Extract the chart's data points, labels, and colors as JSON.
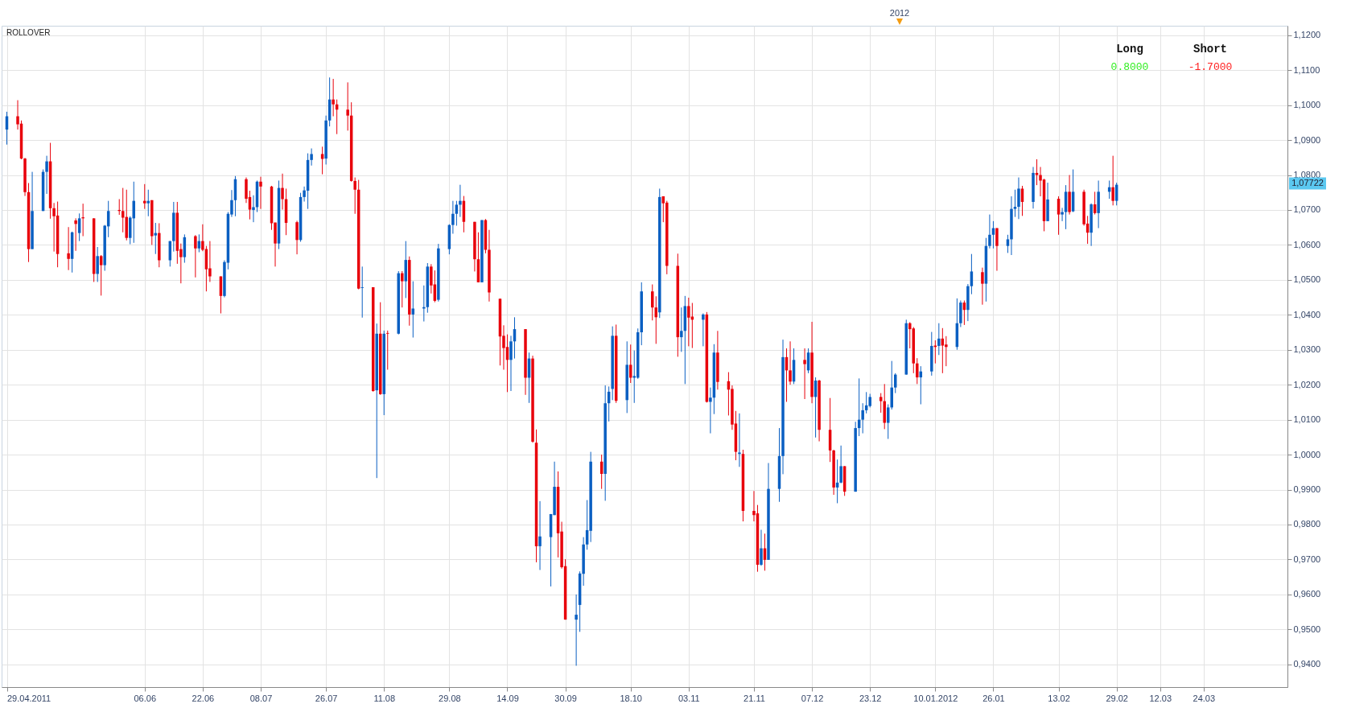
{
  "chart_data": {
    "type": "candlestick",
    "annotations": [
      "ROLLOVER",
      "Long",
      "Short",
      "0.8000",
      "-1.7000",
      "2012",
      "1,07722"
    ],
    "x": [
      "2011-04-29",
      "2011-05-02",
      "2011-05-03",
      "2011-05-04",
      "2011-05-05",
      "2011-05-06",
      "2011-05-09",
      "2011-05-10",
      "2011-05-11",
      "2011-05-12",
      "2011-05-13",
      "2011-05-16",
      "2011-05-17",
      "2011-05-18",
      "2011-05-19",
      "2011-05-20",
      "2011-05-23",
      "2011-05-24",
      "2011-05-25",
      "2011-05-26",
      "2011-05-27",
      "2011-05-30",
      "2011-05-31",
      "2011-06-01",
      "2011-06-02",
      "2011-06-03",
      "2011-06-06",
      "2011-06-07",
      "2011-06-08",
      "2011-06-09",
      "2011-06-10",
      "2011-06-13",
      "2011-06-14",
      "2011-06-15",
      "2011-06-16",
      "2011-06-17",
      "2011-06-20",
      "2011-06-21",
      "2011-06-22",
      "2011-06-23",
      "2011-06-24",
      "2011-06-27",
      "2011-06-28",
      "2011-06-29",
      "2011-06-30",
      "2011-07-01",
      "2011-07-04",
      "2011-07-05",
      "2011-07-06",
      "2011-07-07",
      "2011-07-08",
      "2011-07-11",
      "2011-07-12",
      "2011-07-13",
      "2011-07-14",
      "2011-07-15",
      "2011-07-18",
      "2011-07-19",
      "2011-07-20",
      "2011-07-21",
      "2011-07-22",
      "2011-07-25",
      "2011-07-26",
      "2011-07-27",
      "2011-07-28",
      "2011-07-29",
      "2011-08-01",
      "2011-08-02",
      "2011-08-03",
      "2011-08-04",
      "2011-08-05",
      "2011-08-08",
      "2011-08-09",
      "2011-08-10",
      "2011-08-11",
      "2011-08-12",
      "2011-08-15",
      "2011-08-16",
      "2011-08-17",
      "2011-08-18",
      "2011-08-19",
      "2011-08-22",
      "2011-08-23",
      "2011-08-24",
      "2011-08-25",
      "2011-08-26",
      "2011-08-29",
      "2011-08-30",
      "2011-08-31",
      "2011-09-01",
      "2011-09-02",
      "2011-09-05",
      "2011-09-06",
      "2011-09-07",
      "2011-09-08",
      "2011-09-09",
      "2011-09-12",
      "2011-09-13",
      "2011-09-14",
      "2011-09-15",
      "2011-09-16",
      "2011-09-19",
      "2011-09-20",
      "2011-09-21",
      "2011-09-22",
      "2011-09-23",
      "2011-09-26",
      "2011-09-27",
      "2011-09-28",
      "2011-09-29",
      "2011-09-30",
      "2011-10-03",
      "2011-10-04",
      "2011-10-05",
      "2011-10-06",
      "2011-10-07",
      "2011-10-10",
      "2011-10-11",
      "2011-10-12",
      "2011-10-13",
      "2011-10-14",
      "2011-10-17",
      "2011-10-18",
      "2011-10-19",
      "2011-10-20",
      "2011-10-21",
      "2011-10-24",
      "2011-10-25",
      "2011-10-26",
      "2011-10-27",
      "2011-10-28",
      "2011-10-31",
      "2011-11-01",
      "2011-11-02",
      "2011-11-03",
      "2011-11-04",
      "2011-11-07",
      "2011-11-08",
      "2011-11-09",
      "2011-11-10",
      "2011-11-11",
      "2011-11-14",
      "2011-11-15",
      "2011-11-16",
      "2011-11-17",
      "2011-11-18",
      "2011-11-21",
      "2011-11-22",
      "2011-11-23",
      "2011-11-24",
      "2011-11-25",
      "2011-11-28",
      "2011-11-29",
      "2011-11-30",
      "2011-12-01",
      "2011-12-02",
      "2011-12-05",
      "2011-12-06",
      "2011-12-07",
      "2011-12-08",
      "2011-12-09",
      "2011-12-12",
      "2011-12-13",
      "2011-12-14",
      "2011-12-15",
      "2011-12-16",
      "2011-12-19",
      "2011-12-20",
      "2011-12-21",
      "2011-12-22",
      "2011-12-23",
      "2011-12-26",
      "2011-12-27",
      "2011-12-28",
      "2011-12-29",
      "2011-12-30",
      "2012-01-02",
      "2012-01-03",
      "2012-01-04",
      "2012-01-05",
      "2012-01-06",
      "2012-01-09",
      "2012-01-10",
      "2012-01-11",
      "2012-01-12",
      "2012-01-13",
      "2012-01-16",
      "2012-01-17",
      "2012-01-18",
      "2012-01-19",
      "2012-01-20",
      "2012-01-23",
      "2012-01-24",
      "2012-01-25",
      "2012-01-26",
      "2012-01-27",
      "2012-01-30",
      "2012-01-31",
      "2012-02-01",
      "2012-02-02",
      "2012-02-03",
      "2012-02-06",
      "2012-02-07",
      "2012-02-08",
      "2012-02-09",
      "2012-02-10",
      "2012-02-13",
      "2012-02-14",
      "2012-02-15",
      "2012-02-16",
      "2012-02-17",
      "2012-02-20",
      "2012-02-21",
      "2012-02-22",
      "2012-02-23",
      "2012-02-24",
      "2012-02-27",
      "2012-02-28",
      "2012-02-29"
    ],
    "ohlc": [
      [
        1.093,
        1.0981,
        1.0887,
        1.0968
      ],
      [
        1.0968,
        1.1014,
        1.093,
        1.0945
      ],
      [
        1.0947,
        1.0956,
        1.0845,
        1.0847
      ],
      [
        1.0847,
        1.0849,
        1.074,
        1.0751
      ],
      [
        1.0751,
        1.0777,
        1.0551,
        1.0588
      ],
      [
        1.0588,
        1.0809,
        1.0588,
        1.0697
      ],
      [
        1.0697,
        1.0816,
        1.0697,
        1.0809
      ],
      [
        1.0809,
        1.0855,
        1.0746,
        1.0839
      ],
      [
        1.0839,
        1.0892,
        1.0675,
        1.0705
      ],
      [
        1.0705,
        1.072,
        1.0581,
        1.0682
      ],
      [
        1.0684,
        1.0724,
        1.0536,
        1.0574
      ],
      [
        1.0576,
        1.0651,
        1.0528,
        1.056
      ],
      [
        1.056,
        1.0638,
        1.0521,
        1.0636
      ],
      [
        1.067,
        1.0676,
        1.0583,
        1.066
      ],
      [
        1.0634,
        1.069,
        1.0611,
        1.0676
      ],
      [
        1.0679,
        1.0718,
        1.0625,
        1.0676
      ],
      [
        1.0676,
        1.0676,
        1.0494,
        1.0517
      ],
      [
        1.0517,
        1.0594,
        1.0494,
        1.0568
      ],
      [
        1.0568,
        1.0571,
        1.0455,
        1.0542
      ],
      [
        1.0542,
        1.0657,
        1.0526,
        1.0655
      ],
      [
        1.0653,
        1.0726,
        1.0622,
        1.0697
      ],
      [
        1.07,
        1.0731,
        1.0686,
        1.0697
      ],
      [
        1.0697,
        1.0763,
        1.0636,
        1.0678
      ],
      [
        1.068,
        1.0758,
        1.0613,
        1.062
      ],
      [
        1.062,
        1.0682,
        1.0602,
        1.0678
      ],
      [
        1.0676,
        1.0781,
        1.0606,
        1.0726
      ],
      [
        1.0726,
        1.0774,
        1.0703,
        1.0719
      ],
      [
        1.0719,
        1.0758,
        1.0682,
        1.0726
      ],
      [
        1.0728,
        1.0728,
        1.06,
        1.0625
      ],
      [
        1.0627,
        1.0663,
        1.0574,
        1.0634
      ],
      [
        1.0634,
        1.0662,
        1.0536,
        1.0556
      ],
      [
        1.0556,
        1.0611,
        1.0538,
        1.0611
      ],
      [
        1.0611,
        1.0723,
        1.0581,
        1.0692
      ],
      [
        1.0692,
        1.0723,
        1.0546,
        1.0583
      ],
      [
        1.0588,
        1.0604,
        1.049,
        1.0565
      ],
      [
        1.0565,
        1.063,
        1.0549,
        1.0622
      ],
      [
        1.0625,
        1.0628,
        1.0507,
        1.059
      ],
      [
        1.059,
        1.063,
        1.0579,
        1.0611
      ],
      [
        1.0611,
        1.0659,
        1.0582,
        1.0586
      ],
      [
        1.0588,
        1.0597,
        1.0467,
        1.053
      ],
      [
        1.0533,
        1.0611,
        1.0494,
        1.051
      ],
      [
        1.051,
        1.051,
        1.0404,
        1.0454
      ],
      [
        1.0454,
        1.0556,
        1.045,
        1.0551
      ],
      [
        1.0549,
        1.0694,
        1.053,
        1.0689
      ],
      [
        1.0687,
        1.0757,
        1.068,
        1.0728
      ],
      [
        1.0728,
        1.0797,
        1.0682,
        1.0788
      ],
      [
        1.0788,
        1.0793,
        1.072,
        1.0732
      ],
      [
        1.0737,
        1.0755,
        1.0673,
        1.0701
      ],
      [
        1.07,
        1.0742,
        1.0665,
        1.0708
      ],
      [
        1.0708,
        1.0784,
        1.0694,
        1.0781
      ],
      [
        1.0781,
        1.0795,
        1.0703,
        1.0767
      ],
      [
        1.0767,
        1.0769,
        1.0643,
        1.0662
      ],
      [
        1.0664,
        1.0664,
        1.0538,
        1.0604
      ],
      [
        1.0604,
        1.0784,
        1.0588,
        1.0763
      ],
      [
        1.0763,
        1.0804,
        1.0701,
        1.0731
      ],
      [
        1.0731,
        1.0761,
        1.0628,
        1.0663
      ],
      [
        1.0665,
        1.0669,
        1.0573,
        1.0614
      ],
      [
        1.0614,
        1.0749,
        1.0609,
        1.0737
      ],
      [
        1.0737,
        1.0767,
        1.0724,
        1.0756
      ],
      [
        1.0755,
        1.0862,
        1.0703,
        1.0843
      ],
      [
        1.0843,
        1.0876,
        1.0827,
        1.086
      ],
      [
        1.086,
        1.0881,
        1.0802,
        1.0846
      ],
      [
        1.0847,
        1.097,
        1.083,
        1.0956
      ],
      [
        1.0956,
        1.1079,
        1.0939,
        1.1016
      ],
      [
        1.1016,
        1.1075,
        1.0968,
        1.1002
      ],
      [
        1.1002,
        1.1016,
        1.0917,
        1.0987
      ],
      [
        1.0987,
        1.1065,
        1.0927,
        1.097
      ],
      [
        1.097,
        1.1008,
        1.0781,
        1.0783
      ],
      [
        1.0783,
        1.0793,
        1.0689,
        1.0758
      ],
      [
        1.0758,
        1.0786,
        1.0473,
        1.0475
      ],
      [
        1.0477,
        1.0538,
        1.0392,
        1.0479
      ],
      [
        1.0479,
        1.0479,
        1.018,
        1.0182
      ],
      [
        1.0184,
        1.0375,
        0.9933,
        1.0346
      ],
      [
        1.0346,
        1.0436,
        1.0171,
        1.0173
      ],
      [
        1.0173,
        1.0355,
        1.0113,
        1.0346
      ],
      [
        1.0348,
        1.0355,
        1.0243,
        1.0346
      ],
      [
        1.0346,
        1.0525,
        1.0344,
        1.0519
      ],
      [
        1.0519,
        1.0525,
        1.0421,
        1.0496
      ],
      [
        1.0496,
        1.0611,
        1.0448,
        1.0557
      ],
      [
        1.0557,
        1.0567,
        1.0369,
        1.0401
      ],
      [
        1.0401,
        1.0496,
        1.0335,
        1.0418
      ],
      [
        1.0418,
        1.0484,
        1.0381,
        1.0422
      ],
      [
        1.0422,
        1.0548,
        1.0406,
        1.0538
      ],
      [
        1.0538,
        1.0545,
        1.0461,
        1.0484
      ],
      [
        1.0487,
        1.0527,
        1.0436,
        1.044
      ],
      [
        1.0443,
        1.0603,
        1.0438,
        1.059
      ],
      [
        1.0588,
        1.0659,
        1.0573,
        1.0657
      ],
      [
        1.0657,
        1.0726,
        1.0632,
        1.0689
      ],
      [
        1.0689,
        1.0726,
        1.0655,
        1.0715
      ],
      [
        1.0715,
        1.0772,
        1.068,
        1.0726
      ],
      [
        1.0726,
        1.074,
        1.0636,
        1.0666
      ],
      [
        1.0666,
        1.0666,
        1.0524,
        1.0559
      ],
      [
        1.0559,
        1.0636,
        1.0493,
        1.0493
      ],
      [
        1.0493,
        1.0671,
        1.0493,
        1.0671
      ],
      [
        1.0671,
        1.0674,
        1.0576,
        1.0586
      ],
      [
        1.0586,
        1.0643,
        1.0438,
        1.0464
      ],
      [
        1.0446,
        1.0446,
        1.0255,
        1.0338
      ],
      [
        1.034,
        1.037,
        1.0243,
        1.0305
      ],
      [
        1.0308,
        1.0344,
        1.0179,
        1.0271
      ],
      [
        1.0271,
        1.034,
        1.0182,
        1.0324
      ],
      [
        1.0324,
        1.0393,
        1.0275,
        1.0359
      ],
      [
        1.0359,
        1.0359,
        1.0171,
        1.022
      ],
      [
        1.022,
        1.0292,
        1.0148,
        1.0275
      ],
      [
        1.0275,
        1.0283,
        1.0034,
        1.0037
      ],
      [
        1.0034,
        1.0072,
        0.9692,
        0.9738
      ],
      [
        0.9738,
        0.9867,
        0.967,
        0.9766
      ],
      [
        0.9764,
        0.983,
        0.9623,
        0.983
      ],
      [
        0.9827,
        0.998,
        0.9827,
        0.9908
      ],
      [
        0.9908,
        0.9952,
        0.9706,
        0.9775
      ],
      [
        0.978,
        0.9808,
        0.9674,
        0.9678
      ],
      [
        0.9681,
        0.9701,
        0.9528,
        0.9528
      ],
      [
        0.9528,
        0.96,
        0.9396,
        0.9542
      ],
      [
        0.957,
        0.9666,
        0.9493,
        0.966
      ],
      [
        0.9659,
        0.9764,
        0.9625,
        0.9743
      ],
      [
        0.9743,
        0.987,
        0.9728,
        0.9784
      ],
      [
        0.9782,
        1.0008,
        0.975,
        0.998
      ],
      [
        0.998,
        1.0,
        0.9902,
        0.9945
      ],
      [
        0.9945,
        1.0198,
        0.9868,
        1.0147
      ],
      [
        1.0147,
        1.0195,
        1.0095,
        1.018
      ],
      [
        1.0188,
        1.0367,
        1.0156,
        1.034
      ],
      [
        1.034,
        1.0372,
        1.0148,
        1.0154
      ],
      [
        1.0156,
        1.0324,
        1.0119,
        1.0257
      ],
      [
        1.0257,
        1.0315,
        1.0205,
        1.022
      ],
      [
        1.022,
        1.0298,
        1.0148,
        1.0225
      ],
      [
        1.022,
        1.0361,
        1.0217,
        1.035
      ],
      [
        1.035,
        1.0493,
        1.0313,
        1.0467
      ],
      [
        1.0467,
        1.0487,
        1.0384,
        1.0421
      ],
      [
        1.0421,
        1.0453,
        1.0317,
        1.0393
      ],
      [
        1.0407,
        1.0761,
        1.0391,
        1.0737
      ],
      [
        1.0739,
        1.0739,
        1.0665,
        1.0719
      ],
      [
        1.0721,
        1.0726,
        1.0516,
        1.054
      ],
      [
        1.054,
        1.0575,
        1.028,
        1.0336
      ],
      [
        1.0336,
        1.0421,
        1.0294,
        1.0354
      ],
      [
        1.0354,
        1.0454,
        1.0202,
        1.0425
      ],
      [
        1.0425,
        1.0449,
        1.031,
        1.0392
      ],
      [
        1.0395,
        1.0434,
        1.0305,
        1.0386
      ],
      [
        1.0386,
        1.0404,
        1.031,
        1.0401
      ],
      [
        1.0401,
        1.0408,
        1.0149,
        1.0151
      ],
      [
        1.0151,
        1.0192,
        1.0061,
        1.0163
      ],
      [
        1.0163,
        1.0316,
        1.0116,
        1.0292
      ],
      [
        1.0292,
        1.0354,
        1.0186,
        1.0208
      ],
      [
        1.021,
        1.0236,
        1.0112,
        1.0186
      ],
      [
        1.0188,
        1.0198,
        1.0071,
        1.0086
      ],
      [
        1.0089,
        1.0125,
        0.9984,
        1.0008
      ],
      [
        1.0002,
        1.0118,
        0.9965,
        1.0006
      ],
      [
        1.0002,
        1.0014,
        0.9809,
        0.9839
      ],
      [
        0.9839,
        0.9896,
        0.9809,
        0.9827
      ],
      [
        0.9832,
        0.9856,
        0.9665,
        0.9685
      ],
      [
        0.9685,
        0.9785,
        0.9682,
        0.9732
      ],
      [
        0.9732,
        0.9774,
        0.9668,
        0.9699
      ],
      [
        0.9699,
        0.9976,
        0.9699,
        0.9902
      ],
      [
        0.9902,
        1.0076,
        0.9865,
        0.9996
      ],
      [
        0.9996,
        1.0329,
        0.9944,
        1.0279
      ],
      [
        1.0279,
        1.0304,
        1.0151,
        1.0241
      ],
      [
        1.0241,
        1.0324,
        1.02,
        1.0209
      ],
      [
        1.0209,
        1.0304,
        1.0202,
        1.0271
      ],
      [
        1.0271,
        1.0304,
        1.0159,
        1.0259
      ],
      [
        1.0241,
        1.0304,
        1.0233,
        1.0292
      ],
      [
        1.0292,
        1.038,
        1.0147,
        1.0165
      ],
      [
        1.0165,
        1.0221,
        1.0049,
        1.0212
      ],
      [
        1.0212,
        1.0214,
        1.0038,
        1.0071
      ],
      [
        1.0071,
        1.0162,
        0.9979,
        1.0012
      ],
      [
        1.0012,
        1.0014,
        0.9885,
        0.9906
      ],
      [
        0.9906,
        0.9986,
        0.9861,
        0.992
      ],
      [
        0.992,
        1.0026,
        0.9918,
        0.9967
      ],
      [
        0.9967,
        0.9967,
        0.9882,
        0.9894
      ],
      [
        0.9894,
        1.0094,
        0.9894,
        1.0076
      ],
      [
        1.0076,
        1.0218,
        1.0053,
        1.01
      ],
      [
        1.01,
        1.0147,
        1.0061,
        1.0127
      ],
      [
        1.0127,
        1.0179,
        1.0118,
        1.0141
      ],
      [
        1.0139,
        1.0174,
        1.0135,
        1.0165
      ],
      [
        1.0165,
        1.0176,
        1.012,
        1.0153
      ],
      [
        1.0153,
        1.0202,
        1.0073,
        1.0091
      ],
      [
        1.0091,
        1.0144,
        1.0045,
        1.0135
      ],
      [
        1.0135,
        1.0268,
        1.0129,
        1.0192
      ],
      [
        1.0192,
        1.0233,
        1.0176,
        1.0229
      ],
      [
        1.0229,
        1.0386,
        1.0229,
        1.0376
      ],
      [
        1.0376,
        1.0379,
        1.0304,
        1.0359
      ],
      [
        1.0361,
        1.0365,
        1.0233,
        1.0261
      ],
      [
        1.0261,
        1.0276,
        1.0202,
        1.0221
      ],
      [
        1.0221,
        1.0253,
        1.0144,
        1.0238
      ],
      [
        1.0238,
        1.0351,
        1.0226,
        1.0311
      ],
      [
        1.0312,
        1.0327,
        1.0261,
        1.0308
      ],
      [
        1.0311,
        1.0376,
        1.0285,
        1.0332
      ],
      [
        1.0332,
        1.0362,
        1.0233,
        1.0312
      ],
      [
        1.0315,
        1.0339,
        1.0253,
        1.0308
      ],
      [
        1.0308,
        1.0447,
        1.03,
        1.0376
      ],
      [
        1.0376,
        1.0441,
        1.0365,
        1.0435
      ],
      [
        1.0435,
        1.0441,
        1.0371,
        1.0414
      ],
      [
        1.0414,
        1.0488,
        1.0382,
        1.0482
      ],
      [
        1.0482,
        1.0574,
        1.0459,
        1.0524
      ],
      [
        1.0522,
        1.0535,
        1.0429,
        1.0489
      ],
      [
        1.0489,
        1.062,
        1.0438,
        1.0597
      ],
      [
        1.0597,
        1.0687,
        1.059,
        1.0629
      ],
      [
        1.0629,
        1.0668,
        1.059,
        1.0648
      ],
      [
        1.0648,
        1.0648,
        1.0526,
        1.0597
      ],
      [
        1.0597,
        1.0629,
        1.0577,
        1.0616
      ],
      [
        1.0616,
        1.0739,
        1.0571,
        1.0703
      ],
      [
        1.0703,
        1.0758,
        1.068,
        1.0709
      ],
      [
        1.0709,
        1.0793,
        1.0674,
        1.0761
      ],
      [
        1.0761,
        1.0769,
        1.0683,
        1.0723
      ],
      [
        1.0723,
        1.0823,
        1.0704,
        1.0806
      ],
      [
        1.0806,
        1.0845,
        1.0771,
        1.08
      ],
      [
        1.08,
        1.0823,
        1.0739,
        1.0784
      ],
      [
        1.0787,
        1.0789,
        1.0639,
        1.0668
      ],
      [
        1.0668,
        1.0778,
        1.0668,
        1.073
      ],
      [
        1.0732,
        1.0739,
        1.0629,
        1.0687
      ],
      [
        1.0687,
        1.0706,
        1.0668,
        1.0694
      ],
      [
        1.0694,
        1.0771,
        1.0645,
        1.0752
      ],
      [
        1.0752,
        1.08,
        1.0687,
        1.0694
      ],
      [
        1.0696,
        1.0816,
        1.0694,
        1.0752
      ],
      [
        1.0752,
        1.0758,
        1.0655,
        1.0659
      ],
      [
        1.0661,
        1.0683,
        1.0603,
        1.0635
      ],
      [
        1.0635,
        1.0719,
        1.0597,
        1.0716
      ],
      [
        1.0716,
        1.0752,
        1.0687,
        1.0691
      ],
      [
        1.0691,
        1.0784,
        1.0648,
        1.0752
      ],
      [
        1.0752,
        1.0784,
        1.0732,
        1.0765
      ],
      [
        1.0765,
        1.0855,
        1.0713,
        1.0726
      ],
      [
        1.0726,
        1.0778,
        1.0713,
        1.07722
      ]
    ],
    "colors": [
      "#0a5fc2",
      "#e8000b",
      "#e8000b",
      "#e8000b",
      "#e8000b",
      "#0a5fc2",
      "#0a5fc2",
      "#0a5fc2",
      "#e8000b",
      "#e8000b",
      "#e8000b",
      "#e8000b",
      "#0a5fc2",
      "#e8000b",
      "#0a5fc2",
      "#e8000b",
      "#e8000b",
      "#0a5fc2",
      "#e8000b",
      "#0a5fc2",
      "#0a5fc2",
      "#e8000b",
      "#e8000b",
      "#e8000b",
      "#0a5fc2",
      "#0a5fc2",
      "#e8000b",
      "#0a5fc2",
      "#e8000b",
      "#0a5fc2",
      "#e8000b",
      "#0a5fc2",
      "#0a5fc2",
      "#e8000b",
      "#e8000b",
      "#0a5fc2",
      "#e8000b",
      "#0a5fc2",
      "#e8000b",
      "#e8000b",
      "#e8000b",
      "#e8000b",
      "#0a5fc2",
      "#0a5fc2",
      "#0a5fc2",
      "#0a5fc2",
      "#e8000b",
      "#e8000b",
      "#0a5fc2",
      "#0a5fc2",
      "#e8000b",
      "#e8000b",
      "#e8000b",
      "#0a5fc2",
      "#e8000b",
      "#e8000b",
      "#e8000b",
      "#0a5fc2",
      "#0a5fc2",
      "#0a5fc2",
      "#0a5fc2",
      "#e8000b",
      "#0a5fc2",
      "#0a5fc2",
      "#e8000b",
      "#e8000b",
      "#e8000b",
      "#e8000b",
      "#e8000b",
      "#e8000b",
      "#0a5fc2",
      "#e8000b",
      "#0a5fc2",
      "#e8000b",
      "#0a5fc2",
      "#e8000b",
      "#0a5fc2",
      "#e8000b",
      "#0a5fc2",
      "#e8000b",
      "#0a5fc2",
      "#0a5fc2",
      "#0a5fc2",
      "#e8000b",
      "#e8000b",
      "#0a5fc2",
      "#0a5fc2",
      "#0a5fc2",
      "#0a5fc2",
      "#0a5fc2",
      "#e8000b",
      "#e8000b",
      "#e8000b",
      "#0a5fc2",
      "#e8000b",
      "#e8000b",
      "#e8000b",
      "#e8000b",
      "#e8000b",
      "#0a5fc2",
      "#0a5fc2",
      "#e8000b",
      "#0a5fc2",
      "#e8000b",
      "#e8000b",
      "#0a5fc2",
      "#0a5fc2",
      "#0a5fc2",
      "#e8000b",
      "#e8000b",
      "#e8000b",
      "#0a5fc2",
      "#0a5fc2",
      "#0a5fc2",
      "#0a5fc2",
      "#0a5fc2",
      "#e8000b",
      "#0a5fc2",
      "#0a5fc2",
      "#0a5fc2",
      "#e8000b",
      "#0a5fc2",
      "#e8000b",
      "#0a5fc2",
      "#0a5fc2",
      "#0a5fc2",
      "#e8000b",
      "#e8000b",
      "#0a5fc2",
      "#e8000b",
      "#e8000b",
      "#e8000b",
      "#0a5fc2",
      "#0a5fc2",
      "#e8000b",
      "#e8000b",
      "#0a5fc2",
      "#e8000b",
      "#0a5fc2",
      "#0a5fc2",
      "#e8000b",
      "#e8000b",
      "#e8000b",
      "#e8000b",
      "#0a5fc2",
      "#e8000b",
      "#e8000b",
      "#e8000b",
      "#0a5fc2",
      "#e8000b",
      "#0a5fc2",
      "#0a5fc2",
      "#0a5fc2",
      "#e8000b",
      "#e8000b",
      "#0a5fc2",
      "#e8000b",
      "#0a5fc2",
      "#e8000b",
      "#0a5fc2",
      "#e8000b",
      "#e8000b",
      "#e8000b",
      "#0a5fc2",
      "#0a5fc2",
      "#e8000b",
      "#0a5fc2",
      "#0a5fc2",
      "#0a5fc2",
      "#0a5fc2",
      "#0a5fc2",
      "#e8000b",
      "#e8000b",
      "#0a5fc2",
      "#0a5fc2",
      "#0a5fc2",
      "#0a5fc2",
      "#e8000b",
      "#e8000b",
      "#e8000b",
      "#0a5fc2",
      "#0a5fc2",
      "#e8000b",
      "#0a5fc2",
      "#e8000b",
      "#e8000b",
      "#0a5fc2",
      "#0a5fc2",
      "#e8000b",
      "#0a5fc2",
      "#0a5fc2",
      "#e8000b",
      "#0a5fc2",
      "#0a5fc2",
      "#0a5fc2",
      "#e8000b",
      "#0a5fc2",
      "#0a5fc2",
      "#0a5fc2",
      "#0a5fc2",
      "#e8000b",
      "#0a5fc2",
      "#e8000b",
      "#e8000b",
      "#e8000b",
      "#0a5fc2",
      "#e8000b",
      "#0a5fc2",
      "#0a5fc2",
      "#e8000b",
      "#0a5fc2",
      "#e8000b",
      "#e8000b",
      "#0a5fc2",
      "#e8000b",
      "#0a5fc2",
      "#0a5fc2",
      "#e8000b",
      "#0a5fc2"
    ],
    "xlim": [
      "2011-04-28T16:00",
      "2012-04-15"
    ],
    "xticks": [
      {
        "value": "2011-04-29",
        "label": "29.04.2011"
      },
      {
        "value": "2011-06-06",
        "label": "06.06"
      },
      {
        "value": "2011-06-22",
        "label": "22.06"
      },
      {
        "value": "2011-07-08",
        "label": "08.07"
      },
      {
        "value": "2011-07-26",
        "label": "26.07"
      },
      {
        "value": "2011-08-11",
        "label": "11.08"
      },
      {
        "value": "2011-08-29",
        "label": "29.08"
      },
      {
        "value": "2011-09-14",
        "label": "14.09"
      },
      {
        "value": "2011-09-30",
        "label": "30.09"
      },
      {
        "value": "2011-10-18",
        "label": "18.10"
      },
      {
        "value": "2011-11-03",
        "label": "03.11"
      },
      {
        "value": "2011-11-21",
        "label": "21.11"
      },
      {
        "value": "2011-12-07",
        "label": "07.12"
      },
      {
        "value": "2011-12-23",
        "label": "23.12"
      },
      {
        "value": "2012-01-10",
        "label": "10.01.2012"
      },
      {
        "value": "2012-01-26",
        "label": "26.01"
      },
      {
        "value": "2012-02-13",
        "label": "13.02"
      },
      {
        "value": "2012-02-29",
        "label": "29.02"
      },
      {
        "value": "2012-03-12",
        "label": "12.03"
      },
      {
        "value": "2012-03-24",
        "label": "24.03"
      }
    ],
    "ylim": [
      0.9335,
      1.1227
    ],
    "yticks": [
      {
        "value": 0.94,
        "label": "0,9400"
      },
      {
        "value": 0.95,
        "label": "0,9500"
      },
      {
        "value": 0.96,
        "label": "0,9600"
      },
      {
        "value": 0.97,
        "label": "0,9700"
      },
      {
        "value": 0.98,
        "label": "0,9800"
      },
      {
        "value": 0.99,
        "label": "0,9900"
      },
      {
        "value": 1.0,
        "label": "1,0000"
      },
      {
        "value": 1.01,
        "label": "1,0100"
      },
      {
        "value": 1.02,
        "label": "1,0200"
      },
      {
        "value": 1.03,
        "label": "1,0300"
      },
      {
        "value": 1.04,
        "label": "1,0400"
      },
      {
        "value": 1.05,
        "label": "1,0500"
      },
      {
        "value": 1.06,
        "label": "1,0600"
      },
      {
        "value": 1.07,
        "label": "1,0700"
      },
      {
        "value": 1.08,
        "label": "1,0800"
      },
      {
        "value": 1.09,
        "label": "1,0900"
      },
      {
        "value": 1.1,
        "label": "1,1000"
      },
      {
        "value": 1.11,
        "label": "1,1100"
      },
      {
        "value": 1.12,
        "label": "1,1200"
      }
    ],
    "grid": true
  }
}
